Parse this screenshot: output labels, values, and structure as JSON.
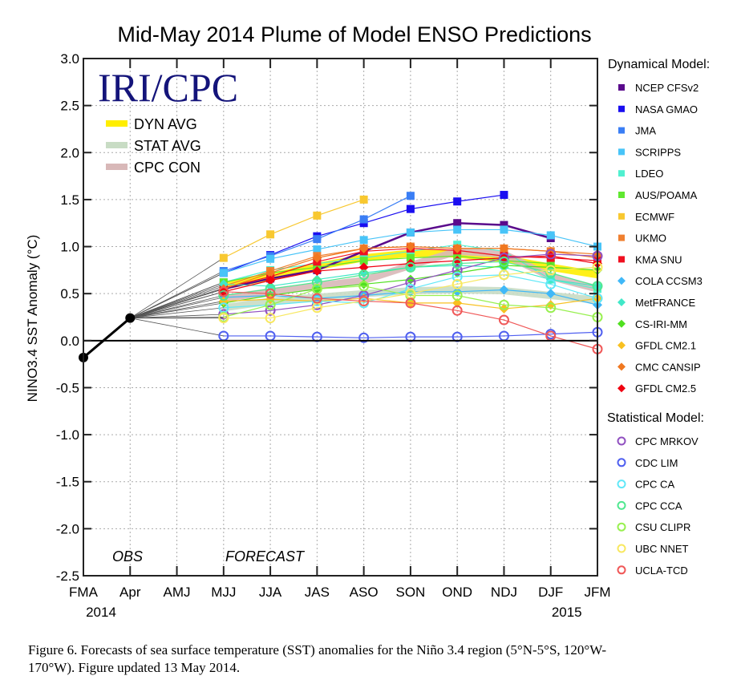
{
  "chart_data": {
    "type": "line",
    "title": "Mid-May 2014 Plume of Model ENSO Predictions",
    "xlabel": "",
    "ylabel": "NINO3.4 SST Anomaly (°C)",
    "ylim": [
      -2.5,
      3.0
    ],
    "yticks": [
      "3.0",
      "2.5",
      "2.0",
      "1.5",
      "1.0",
      "0.5",
      "0.0",
      "-0.5",
      "-1.0",
      "-1.5",
      "-2.0",
      "-2.5"
    ],
    "ytick_values": [
      3.0,
      2.5,
      2.0,
      1.5,
      1.0,
      0.5,
      0.0,
      -0.5,
      -1.0,
      -1.5,
      -2.0,
      -2.5
    ],
    "categories": [
      "FMA",
      "Apr",
      "AMJ",
      "MJJ",
      "JJA",
      "JAS",
      "ASO",
      "SON",
      "OND",
      "NDJ",
      "DJF",
      "JFM"
    ],
    "year_labels": [
      {
        "label": "2014",
        "at": "FMA"
      },
      {
        "label": "2015",
        "at": "DJF"
      }
    ],
    "grid": true,
    "annotations": {
      "obs": "OBS",
      "forecast": "FORECAST",
      "logo": "IRI/CPC"
    },
    "observed": {
      "name": "OBS",
      "color": "#000000",
      "values": [
        -0.18,
        0.24
      ]
    },
    "averages": [
      {
        "name": "DYN AVG",
        "color": "#ffee00",
        "values": [
          null,
          0.24,
          null,
          0.58,
          0.68,
          0.79,
          0.88,
          0.93,
          0.92,
          0.87,
          0.78,
          0.7
        ]
      },
      {
        "name": "STAT AVG",
        "color": "#c8dcc4",
        "values": [
          null,
          0.24,
          null,
          0.35,
          0.42,
          0.46,
          0.5,
          0.53,
          0.54,
          0.53,
          0.48,
          0.43
        ]
      },
      {
        "name": "CPC CON",
        "color": "#d8b8b8",
        "values": [
          null,
          0.24,
          null,
          0.45,
          0.52,
          0.58,
          0.64,
          0.8,
          0.95,
          0.92,
          0.68,
          0.55
        ]
      }
    ],
    "legend_dynamical_title": "Dynamical Model:",
    "legend_statistical_title": "Statistical Model:",
    "series": [
      {
        "name": "NCEP CFSv2",
        "group": "dynamical",
        "marker": "square",
        "color": "#5a0a8c",
        "values": [
          null,
          0.24,
          null,
          0.55,
          0.66,
          0.75,
          0.95,
          1.15,
          1.25,
          1.23,
          1.09,
          null
        ]
      },
      {
        "name": "NASA GMAO",
        "group": "dynamical",
        "marker": "square",
        "color": "#1a0ef0",
        "values": [
          null,
          0.24,
          null,
          0.72,
          0.91,
          1.11,
          1.25,
          1.4,
          1.48,
          1.55,
          null,
          null
        ]
      },
      {
        "name": "JMA",
        "group": "dynamical",
        "marker": "square",
        "color": "#3a7ef5",
        "values": [
          null,
          0.24,
          null,
          0.74,
          0.9,
          1.08,
          1.29,
          1.54,
          null,
          null,
          null,
          null
        ]
      },
      {
        "name": "SCRIPPS",
        "group": "dynamical",
        "marker": "square",
        "color": "#48c4f8",
        "values": [
          null,
          0.24,
          null,
          0.72,
          0.87,
          0.97,
          1.07,
          1.15,
          1.18,
          1.18,
          1.12,
          1.0
        ]
      },
      {
        "name": "LDEO",
        "group": "dynamical",
        "marker": "square",
        "color": "#50f0d0",
        "values": [
          null,
          0.24,
          null,
          0.62,
          0.75,
          0.82,
          0.88,
          0.95,
          1.02,
          0.95,
          0.65,
          0.55
        ]
      },
      {
        "name": "AUS/POAMA",
        "group": "dynamical",
        "marker": "square",
        "color": "#60e830",
        "values": [
          null,
          0.24,
          null,
          0.62,
          0.72,
          0.78,
          0.85,
          0.88,
          0.9,
          0.85,
          0.82,
          null
        ]
      },
      {
        "name": "ECMWF",
        "group": "dynamical",
        "marker": "square",
        "color": "#f8c830",
        "values": [
          null,
          0.24,
          null,
          0.88,
          1.13,
          1.33,
          1.5,
          null,
          null,
          null,
          null,
          null
        ]
      },
      {
        "name": "UKMO",
        "group": "dynamical",
        "marker": "square",
        "color": "#f08030",
        "values": [
          null,
          0.24,
          null,
          0.58,
          0.74,
          0.9,
          0.98,
          1.0,
          0.98,
          0.98,
          0.95,
          0.88
        ]
      },
      {
        "name": "KMA SNU",
        "group": "dynamical",
        "marker": "square",
        "color": "#f01020",
        "values": [
          null,
          0.24,
          null,
          0.56,
          0.68,
          0.84,
          0.95,
          0.98,
          0.96,
          0.9,
          0.88,
          0.85
        ]
      },
      {
        "name": "COLA CCSM3",
        "group": "dynamical",
        "marker": "diamond",
        "color": "#40b8f8",
        "values": [
          null,
          0.24,
          null,
          0.46,
          0.48,
          0.45,
          0.48,
          0.52,
          0.52,
          0.54,
          0.5,
          0.38
        ]
      },
      {
        "name": "MetFRANCE",
        "group": "dynamical",
        "marker": "diamond",
        "color": "#40e8c8",
        "values": [
          null,
          0.24,
          null,
          0.6,
          0.58,
          0.65,
          0.72,
          0.78,
          0.8,
          0.78,
          0.65,
          0.58
        ]
      },
      {
        "name": "CS-IRI-MM",
        "group": "dynamical",
        "marker": "diamond",
        "color": "#50e020",
        "values": [
          null,
          0.24,
          null,
          0.4,
          0.48,
          0.55,
          0.6,
          0.65,
          0.72,
          0.8,
          0.78,
          0.75
        ]
      },
      {
        "name": "GFDL CM2.1",
        "group": "dynamical",
        "marker": "diamond",
        "color": "#f8c020",
        "values": [
          null,
          0.24,
          null,
          0.42,
          0.44,
          0.42,
          0.45,
          0.4,
          0.4,
          0.34,
          0.38,
          0.45
        ]
      },
      {
        "name": "CMC CANSIP",
        "group": "dynamical",
        "marker": "diamond",
        "color": "#f07820",
        "values": [
          null,
          0.24,
          null,
          0.55,
          0.72,
          0.88,
          0.98,
          1.0,
          0.98,
          0.98,
          0.95,
          0.92
        ]
      },
      {
        "name": "GFDL CM2.5",
        "group": "dynamical",
        "marker": "diamond",
        "color": "#f00010",
        "values": [
          null,
          0.24,
          null,
          0.52,
          0.64,
          0.74,
          0.78,
          0.82,
          0.85,
          0.88,
          0.9,
          0.82
        ]
      },
      {
        "name": "CPC MRKOV",
        "group": "statistical",
        "marker": "circle",
        "color": "#9050c0",
        "values": [
          null,
          0.24,
          null,
          0.28,
          0.32,
          0.38,
          0.48,
          0.62,
          0.75,
          0.88,
          0.92,
          0.9
        ]
      },
      {
        "name": "CDC LIM",
        "group": "statistical",
        "marker": "circle",
        "color": "#5060f0",
        "values": [
          null,
          0.24,
          null,
          0.05,
          0.05,
          0.04,
          0.03,
          0.04,
          0.04,
          0.05,
          0.07,
          0.09
        ]
      },
      {
        "name": "CPC CA",
        "group": "statistical",
        "marker": "circle",
        "color": "#60e8f8",
        "values": [
          null,
          0.24,
          null,
          0.35,
          0.38,
          0.42,
          0.4,
          0.55,
          0.68,
          0.7,
          0.6,
          0.45
        ]
      },
      {
        "name": "CPC CCA",
        "group": "statistical",
        "marker": "circle",
        "color": "#50e890",
        "values": [
          null,
          0.24,
          null,
          0.48,
          0.55,
          0.62,
          0.7,
          0.78,
          0.82,
          0.84,
          0.72,
          0.58
        ]
      },
      {
        "name": "CSU CLIPR",
        "group": "statistical",
        "marker": "circle",
        "color": "#98f050",
        "values": [
          null,
          0.24,
          null,
          0.25,
          0.38,
          0.55,
          0.58,
          0.48,
          0.48,
          0.38,
          0.35,
          0.25
        ]
      },
      {
        "name": "UBC NNET",
        "group": "statistical",
        "marker": "circle",
        "color": "#f8e860",
        "values": [
          null,
          0.24,
          null,
          0.24,
          0.24,
          0.35,
          0.42,
          0.5,
          0.6,
          0.7,
          0.75,
          0.78
        ]
      },
      {
        "name": "UCLA-TCD",
        "group": "statistical",
        "marker": "circle",
        "color": "#f05858",
        "values": [
          null,
          0.24,
          null,
          0.52,
          0.5,
          0.45,
          0.42,
          0.4,
          0.32,
          0.22,
          0.05,
          -0.09
        ]
      }
    ]
  },
  "caption": {
    "line1": "Figure 6. Forecasts of sea surface temperature (SST) anomalies for the Niño 3.4 region (5°N-5°S, 120°W-",
    "line2": "170°W).  Figure updated 13 May 2014."
  }
}
